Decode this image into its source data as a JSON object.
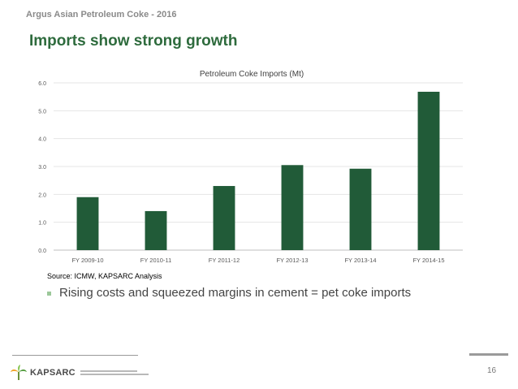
{
  "header": {
    "label": "Argus Asian Petroleum Coke - 2016"
  },
  "slide": {
    "title": "Imports show strong growth"
  },
  "chart_data": {
    "type": "bar",
    "title": "Petroleum Coke Imports (Mt)",
    "categories": [
      "FY 2009-10",
      "FY 2010-11",
      "FY 2011-12",
      "FY 2012-13",
      "FY 2013-14",
      "FY 2014-15"
    ],
    "values": [
      1.9,
      1.4,
      2.3,
      3.05,
      2.92,
      5.68
    ],
    "ylim": [
      0,
      6.0
    ],
    "yticks": [
      "0.0",
      "1.0",
      "2.0",
      "3.0",
      "4.0",
      "5.0",
      "6.0"
    ],
    "xlabel": "",
    "ylabel": "",
    "grid": true,
    "bar_color": "#215b38",
    "grid_color": "#e4e4e4"
  },
  "source": {
    "text": "Source: ICMW, KAPSARC Analysis"
  },
  "bullets": [
    {
      "text": "Rising costs and squeezed margins in cement = pet coke imports"
    }
  ],
  "footer": {
    "logo_text": "KAPSARC",
    "page_number": "16"
  },
  "colors": {
    "title": "#2e6b3d",
    "bullet": "#9cc89a"
  }
}
